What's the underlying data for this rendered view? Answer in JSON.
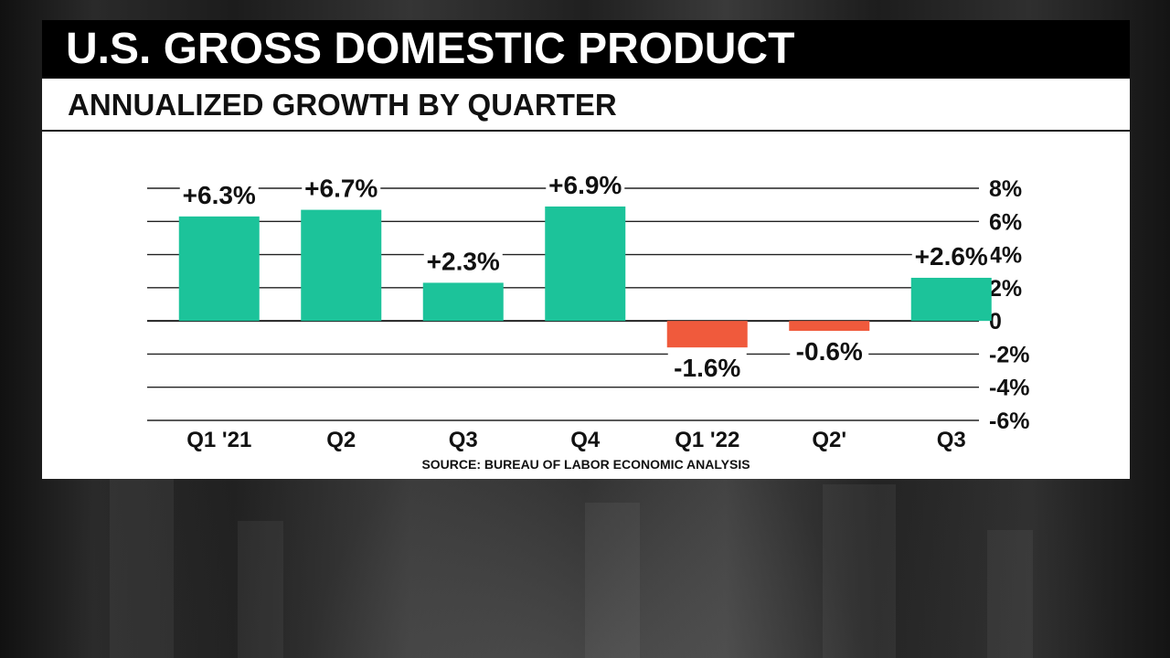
{
  "header": {
    "title": "U.S. GROSS DOMESTIC PRODUCT",
    "subtitle": "ANNUALIZED GROWTH BY QUARTER"
  },
  "source": "SOURCE: BUREAU OF LABOR ECONOMIC ANALYSIS",
  "colors": {
    "positive": "#1CC39A",
    "negative": "#F05A3C",
    "grid": "#222222",
    "text": "#111111"
  },
  "chart_data": {
    "type": "bar",
    "title": "U.S. GROSS DOMESTIC PRODUCT",
    "subtitle": "ANNUALIZED GROWTH BY QUARTER",
    "categories": [
      "Q1 '21",
      "Q2",
      "Q3",
      "Q4",
      "Q1 '22",
      "Q2'",
      "Q3"
    ],
    "values": [
      6.3,
      6.7,
      2.3,
      6.9,
      -1.6,
      -0.6,
      2.6
    ],
    "data_labels": [
      "+6.3%",
      "+6.7%",
      "+2.3%",
      "+6.9%",
      "-1.6%",
      "-0.6%",
      "+2.6%"
    ],
    "y_ticks": [
      8,
      6,
      4,
      2,
      0,
      -2,
      -4,
      -6
    ],
    "y_tick_labels": [
      "8%",
      "6%",
      "4%",
      "2%",
      "0",
      "-2%",
      "-4%",
      "-6%"
    ],
    "ylim": [
      -6,
      8
    ],
    "y_axis_position": "right",
    "grid": true,
    "xlabel": "",
    "ylabel": ""
  }
}
